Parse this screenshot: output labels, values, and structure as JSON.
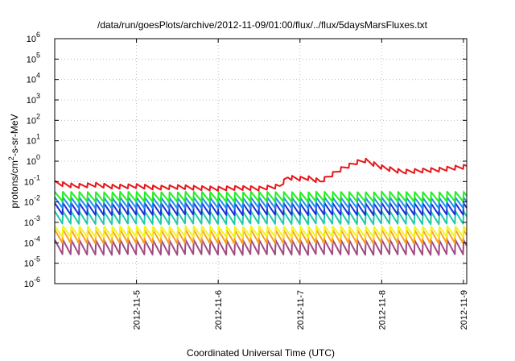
{
  "chart_data": {
    "type": "line",
    "title": "/data/run/goesPlots/archive/2012-11-09/01:00/flux/../flux/5daysMarsFluxes.txt",
    "xlabel": "Coordinated Universal Time (UTC)",
    "ylabel_main": "protons/cm",
    "ylabel_sup": "2",
    "ylabel_rest": "-s-sr-MeV",
    "yscale": "log",
    "ylim": [
      1e-06,
      1000000.0
    ],
    "xlim": [
      0,
      5.04
    ],
    "grid": true,
    "x_tick_labels": [
      {
        "pos": 1.0,
        "label": "2012-11-5"
      },
      {
        "pos": 2.0,
        "label": "2012-11-6"
      },
      {
        "pos": 3.0,
        "label": "2012-11-7"
      },
      {
        "pos": 4.0,
        "label": "2012-11-8"
      },
      {
        "pos": 5.0,
        "label": "2012-11-9"
      }
    ],
    "y_ticks": [
      {
        "exp": -6,
        "base": "10",
        "sup": "-6"
      },
      {
        "exp": -5,
        "base": "10",
        "sup": "-5"
      },
      {
        "exp": -4,
        "base": "10",
        "sup": "-4"
      },
      {
        "exp": -3,
        "base": "10",
        "sup": "-3"
      },
      {
        "exp": -2,
        "base": "10",
        "sup": "-2"
      },
      {
        "exp": -1,
        "base": "10",
        "sup": "-1"
      },
      {
        "exp": 0,
        "base": "10",
        "sup": "0"
      },
      {
        "exp": 1,
        "base": "10",
        "sup": "1"
      },
      {
        "exp": 2,
        "base": "10",
        "sup": "2"
      },
      {
        "exp": 3,
        "base": "10",
        "sup": "3"
      },
      {
        "exp": 4,
        "base": "10",
        "sup": "4"
      },
      {
        "exp": 5,
        "base": "10",
        "sup": "5"
      },
      {
        "exp": 6,
        "base": "10",
        "sup": "6"
      }
    ],
    "series": [
      {
        "color": "#e8161b",
        "x": [
          0.0,
          0.25,
          0.5,
          0.75,
          1.0,
          1.25,
          1.5,
          1.75,
          2.0,
          2.25,
          2.5,
          2.75,
          2.85,
          3.0,
          3.1,
          3.25,
          3.5,
          3.7,
          3.8,
          4.0,
          4.25,
          4.5,
          4.75,
          5.04
        ],
        "y": [
          0.085,
          0.06,
          0.07,
          0.055,
          0.06,
          0.05,
          0.055,
          0.048,
          0.045,
          0.05,
          0.045,
          0.06,
          0.16,
          0.14,
          0.15,
          0.1,
          0.4,
          0.9,
          1.1,
          0.5,
          0.3,
          0.35,
          0.4,
          0.55
        ],
        "saw_period": 0.1,
        "saw_amp": 0.22
      },
      {
        "color": "#1fef1f",
        "base": 0.018,
        "trend": 0.0,
        "saw_period": 0.1,
        "saw_amp": 0.5
      },
      {
        "color": "#1f8fef",
        "base": 0.009,
        "trend": 0.0,
        "saw_period": 0.1,
        "saw_amp": 0.55
      },
      {
        "color": "#1a2fd6",
        "base": 0.0045,
        "trend": 0.0,
        "saw_period": 0.1,
        "saw_amp": 0.6
      },
      {
        "color": "#21c9a8",
        "base": 0.0017,
        "trend": 0.0,
        "saw_period": 0.1,
        "saw_amp": 0.65
      },
      {
        "color": "#f3f320",
        "base": 0.00035,
        "trend": 0.0,
        "saw_period": 0.1,
        "saw_amp": 0.55
      },
      {
        "color": "#f7a21c",
        "base": 0.0002,
        "trend": 0.0,
        "saw_period": 0.1,
        "saw_amp": 0.7
      },
      {
        "color": "#a04a80",
        "base": 6e-05,
        "trend": 0.0,
        "saw_period": 0.1,
        "saw_amp": 0.75
      }
    ]
  }
}
